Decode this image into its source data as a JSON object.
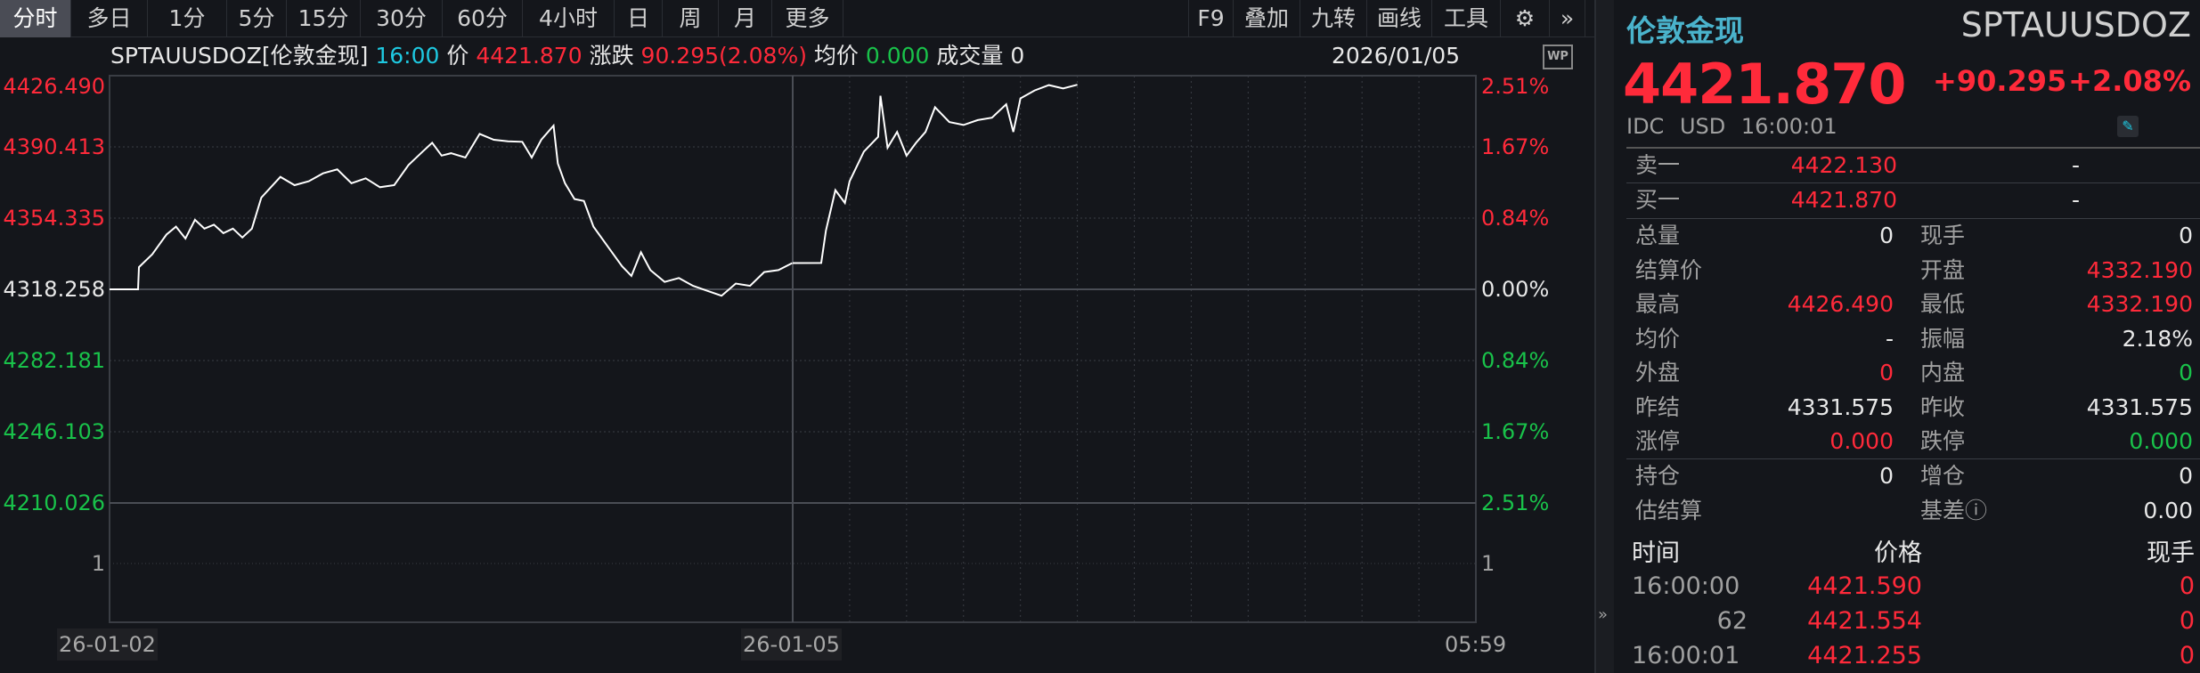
{
  "toolbar": {
    "tabs": [
      "分时",
      "多日",
      "1分",
      "5分",
      "15分",
      "30分",
      "60分",
      "4小时",
      "日",
      "周",
      "月",
      "更多"
    ],
    "active_tab": "分时",
    "right_buttons": [
      "F9",
      "叠加",
      "九转",
      "画线",
      "工具"
    ],
    "settings_icon": "gear-icon",
    "expand_icon": "double-chevron-right-icon"
  },
  "info_bar": {
    "symbol": "SPTAUUSDOZ[伦敦金现]",
    "time": "16:00",
    "price_label": "价",
    "price": "4421.870",
    "change_label": "涨跌",
    "change": "90.295(2.08%)",
    "avg_label": "均价",
    "avg": "0.000",
    "volume_label": "成交量",
    "volume": "0",
    "date": "2026/01/05",
    "wp_badge": "WP"
  },
  "chart_data": {
    "type": "line",
    "y_axis_left": [
      "4426.490",
      "4390.413",
      "4354.335",
      "4318.258",
      "4282.181",
      "4246.103",
      "4210.026"
    ],
    "y_axis_right": [
      "2.51%",
      "1.67%",
      "0.84%",
      "0.00%",
      "0.84%",
      "1.67%",
      "2.51%"
    ],
    "ylim": [
      4210.026,
      4426.49
    ],
    "prev_close": 4318.258,
    "sub_chart_label": "1",
    "x_labels": [
      "26-01-02",
      "26-01-05",
      "05:59"
    ],
    "sessions": [
      {
        "date": "26-01-02",
        "points": [
          [
            "06:00",
            4318.258
          ],
          [
            "07:00",
            4318.258
          ],
          [
            "07:02",
            4329.5
          ],
          [
            "07:30",
            4336
          ],
          [
            "07:45",
            4341
          ],
          [
            "08:00",
            4346
          ],
          [
            "08:20",
            4350
          ],
          [
            "08:40",
            4344
          ],
          [
            "09:00",
            4353.5
          ],
          [
            "09:20",
            4349
          ],
          [
            "09:40",
            4351
          ],
          [
            "10:00",
            4346.7
          ],
          [
            "10:20",
            4349
          ],
          [
            "10:40",
            4344.5
          ],
          [
            "11:00",
            4349
          ],
          [
            "11:20",
            4364.7
          ],
          [
            "11:40",
            4370
          ],
          [
            "12:00",
            4375.2
          ],
          [
            "12:30",
            4371
          ],
          [
            "13:00",
            4373
          ],
          [
            "13:30",
            4377
          ],
          [
            "14:00",
            4379
          ],
          [
            "14:30",
            4372
          ],
          [
            "15:00",
            4374.5
          ],
          [
            "15:30",
            4370
          ],
          [
            "16:00",
            4371
          ],
          [
            "16:30",
            4381.2
          ],
          [
            "17:00",
            4388
          ],
          [
            "17:20",
            4392.5
          ],
          [
            "17:40",
            4386
          ],
          [
            "18:00",
            4387.2
          ],
          [
            "18:30",
            4385
          ],
          [
            "19:00",
            4397
          ],
          [
            "19:30",
            4394
          ],
          [
            "20:00",
            4393.2
          ],
          [
            "20:30",
            4393
          ],
          [
            "20:50",
            4385
          ],
          [
            "21:10",
            4394
          ],
          [
            "21:36",
            4401.2
          ],
          [
            "21:45",
            4382
          ],
          [
            "22:00",
            4372
          ],
          [
            "22:20",
            4364
          ],
          [
            "22:40",
            4363
          ],
          [
            "23:00",
            4350
          ],
          [
            "23:30",
            4340
          ],
          [
            "00:00",
            4330
          ],
          [
            "00:20",
            4325
          ],
          [
            "00:40",
            4337
          ],
          [
            "01:00",
            4328
          ],
          [
            "01:30",
            4322
          ],
          [
            "02:00",
            4324
          ],
          [
            "02:30",
            4320
          ],
          [
            "03:00",
            4317.5
          ],
          [
            "03:30",
            4315
          ],
          [
            "04:00",
            4321.2
          ],
          [
            "04:30",
            4320
          ],
          [
            "05:00",
            4327
          ],
          [
            "05:30",
            4328
          ],
          [
            "05:59",
            4331.575
          ]
        ]
      },
      {
        "date": "26-01-05",
        "points": [
          [
            "06:00",
            4331.575
          ],
          [
            "07:00",
            4331.6
          ],
          [
            "07:10",
            4348
          ],
          [
            "07:30",
            4368.5
          ],
          [
            "07:50",
            4362
          ],
          [
            "08:00",
            4373
          ],
          [
            "08:30",
            4388
          ],
          [
            "09:00",
            4395.5
          ],
          [
            "09:05",
            4416.3
          ],
          [
            "09:20",
            4390
          ],
          [
            "09:40",
            4398
          ],
          [
            "10:00",
            4386
          ],
          [
            "10:20",
            4392.5
          ],
          [
            "10:40",
            4398
          ],
          [
            "11:00",
            4410.5
          ],
          [
            "11:30",
            4403
          ],
          [
            "12:00",
            4401.5
          ],
          [
            "12:30",
            4404
          ],
          [
            "13:00",
            4405.2
          ],
          [
            "13:30",
            4412
          ],
          [
            "13:45",
            4398
          ],
          [
            "14:00",
            4415
          ],
          [
            "14:30",
            4419
          ],
          [
            "15:00",
            4421.7
          ],
          [
            "15:30",
            4420
          ],
          [
            "16:00",
            4421.87
          ]
        ]
      }
    ]
  },
  "right_panel": {
    "name": "伦敦金现",
    "code": "SPTAUUSDOZ",
    "price": "4421.870",
    "change": "+90.295",
    "change_pct": "+2.08%",
    "source": "IDC",
    "currency": "USD",
    "time": "16:00:01",
    "edit_icon": "pencil-icon",
    "ask_label": "卖一",
    "ask": "4422.130",
    "ask_vol": "-",
    "bid_label": "买一",
    "bid": "4421.870",
    "bid_vol": "-",
    "stats": [
      {
        "l": "总量",
        "lv": "0",
        "lc": "white",
        "r": "现手",
        "rv": "0",
        "rc": "white"
      },
      {
        "l": "结算价",
        "lv": "",
        "lc": "white",
        "r": "开盘",
        "rv": "4332.190",
        "rc": "red"
      },
      {
        "l": "最高",
        "lv": "4426.490",
        "lc": "red",
        "r": "最低",
        "rv": "4332.190",
        "rc": "red"
      },
      {
        "l": "均价",
        "lv": "-",
        "lc": "white",
        "r": "振幅",
        "rv": "2.18%",
        "rc": "white"
      },
      {
        "l": "外盘",
        "lv": "0",
        "lc": "red",
        "r": "内盘",
        "rv": "0",
        "rc": "green"
      },
      {
        "l": "昨结",
        "lv": "4331.575",
        "lc": "white",
        "r": "昨收",
        "rv": "4331.575",
        "rc": "white"
      },
      {
        "l": "涨停",
        "lv": "0.000",
        "lc": "red",
        "r": "跌停",
        "rv": "0.000",
        "rc": "green"
      }
    ],
    "stats2": [
      {
        "l": "持仓",
        "lv": "0",
        "lc": "white",
        "r": "增仓",
        "rv": "0",
        "rc": "white"
      },
      {
        "l": "估结算",
        "lv": "",
        "lc": "white",
        "r": "基差ⓘ",
        "rv": "0.00",
        "rc": "white"
      }
    ],
    "ticks_header": {
      "time": "时间",
      "price": "价格",
      "vol": "现手"
    },
    "ticks": [
      {
        "time": "16:00:00",
        "price": "4421.590",
        "vol": "0"
      },
      {
        "time": "62",
        "price": "4421.554",
        "vol": "0"
      },
      {
        "time": "16:00:01",
        "price": "4421.255",
        "vol": "0"
      }
    ],
    "collapse_icon": "double-chevron-right-icon"
  },
  "colors": {
    "up": "#ff2a3a",
    "down": "#19c24a",
    "accent": "#1ec8e0",
    "title": "#4ab3cc",
    "line": "#ffffff",
    "bg": "#14161b"
  }
}
